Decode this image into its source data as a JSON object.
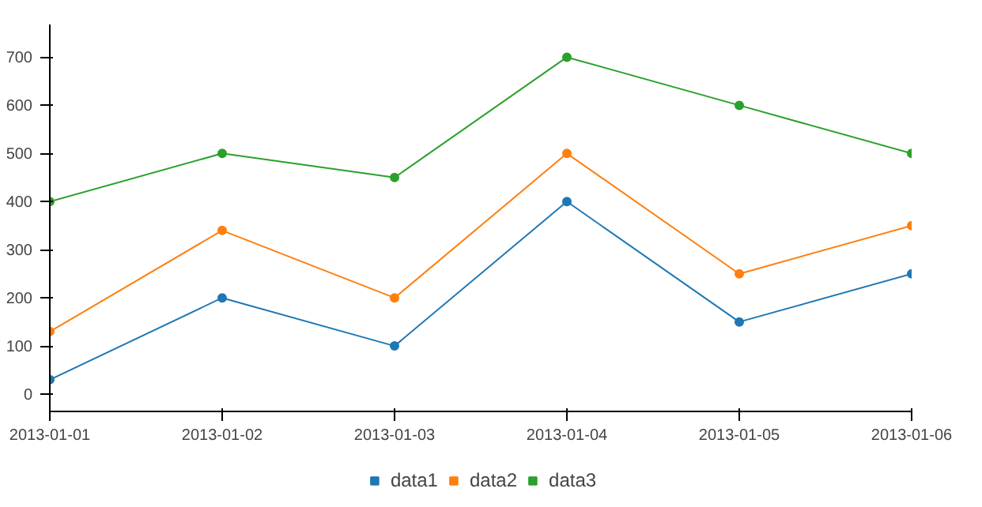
{
  "chart_data": {
    "type": "line",
    "x": [
      "2013-01-01",
      "2013-01-02",
      "2013-01-03",
      "2013-01-04",
      "2013-01-05",
      "2013-01-06"
    ],
    "series": [
      {
        "name": "data1",
        "color": "#1f77b4",
        "values": [
          30,
          200,
          100,
          400,
          150,
          250
        ]
      },
      {
        "name": "data2",
        "color": "#ff7f0e",
        "values": [
          130,
          340,
          200,
          500,
          250,
          350
        ]
      },
      {
        "name": "data3",
        "color": "#2ca02c",
        "values": [
          400,
          500,
          450,
          700,
          600,
          500
        ]
      }
    ],
    "xlim": [
      "2013-01-01",
      "2013-01-06"
    ],
    "xticks": [
      "2013-01-01",
      "2013-01-02",
      "2013-01-03",
      "2013-01-04",
      "2013-01-05",
      "2013-01-06"
    ],
    "ylim": [
      -36,
      768
    ],
    "yticks": [
      0,
      100,
      200,
      300,
      400,
      500,
      600,
      700
    ],
    "grid": false,
    "legend": "bottom",
    "marker": "circle",
    "line_style": "solid"
  }
}
